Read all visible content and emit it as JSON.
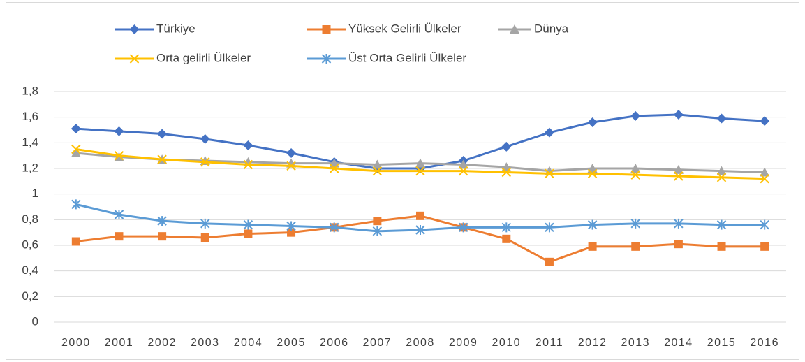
{
  "chart_data": {
    "type": "line",
    "categories": [
      "2000",
      "2001",
      "2002",
      "2003",
      "2004",
      "2005",
      "2006",
      "2007",
      "2008",
      "2009",
      "2010",
      "2011",
      "2012",
      "2013",
      "2014",
      "2015",
      "2016"
    ],
    "series": [
      {
        "name": "Türkiye",
        "color": "#4472c4",
        "marker": "diamond",
        "values": [
          1.51,
          1.49,
          1.47,
          1.43,
          1.38,
          1.32,
          1.25,
          1.2,
          1.2,
          1.26,
          1.37,
          1.48,
          1.56,
          1.61,
          1.62,
          1.59,
          1.57
        ]
      },
      {
        "name": "Yüksek Gelirli Ülkeler",
        "color": "#ed7d31",
        "marker": "square",
        "values": [
          0.63,
          0.67,
          0.67,
          0.66,
          0.69,
          0.7,
          0.74,
          0.79,
          0.83,
          0.74,
          0.65,
          0.47,
          0.59,
          0.59,
          0.61,
          0.59,
          0.59
        ]
      },
      {
        "name": "Dünya",
        "color": "#a5a5a5",
        "marker": "triangle",
        "values": [
          1.32,
          1.29,
          1.27,
          1.26,
          1.25,
          1.24,
          1.24,
          1.23,
          1.24,
          1.23,
          1.21,
          1.18,
          1.2,
          1.2,
          1.19,
          1.18,
          1.17
        ]
      },
      {
        "name": "Orta gelirli Ülkeler",
        "color": "#ffc000",
        "marker": "x",
        "values": [
          1.35,
          1.3,
          1.27,
          1.25,
          1.23,
          1.22,
          1.2,
          1.18,
          1.18,
          1.18,
          1.17,
          1.16,
          1.16,
          1.15,
          1.14,
          1.13,
          1.12
        ]
      },
      {
        "name": "Üst Orta Gelirli Ülkeler",
        "color": "#5b9bd5",
        "marker": "asterisk",
        "values": [
          0.92,
          0.84,
          0.79,
          0.77,
          0.76,
          0.75,
          0.74,
          0.71,
          0.72,
          0.74,
          0.74,
          0.74,
          0.76,
          0.77,
          0.77,
          0.76,
          0.76
        ]
      }
    ],
    "ylim": [
      0,
      1.8
    ],
    "yticks": [
      0,
      {
        "value": 0.2,
        "label": "0,2"
      },
      {
        "value": 0.4,
        "label": "0,4"
      },
      {
        "value": 0.6,
        "label": "0,6"
      },
      {
        "value": 0.8,
        "label": "0,8"
      },
      1,
      {
        "value": 1.2,
        "label": "1,2"
      },
      {
        "value": 1.4,
        "label": "1,4"
      },
      {
        "value": 1.6,
        "label": "1,6"
      },
      {
        "value": 1.8,
        "label": "1,8"
      }
    ],
    "grid": true,
    "legend": "top"
  }
}
